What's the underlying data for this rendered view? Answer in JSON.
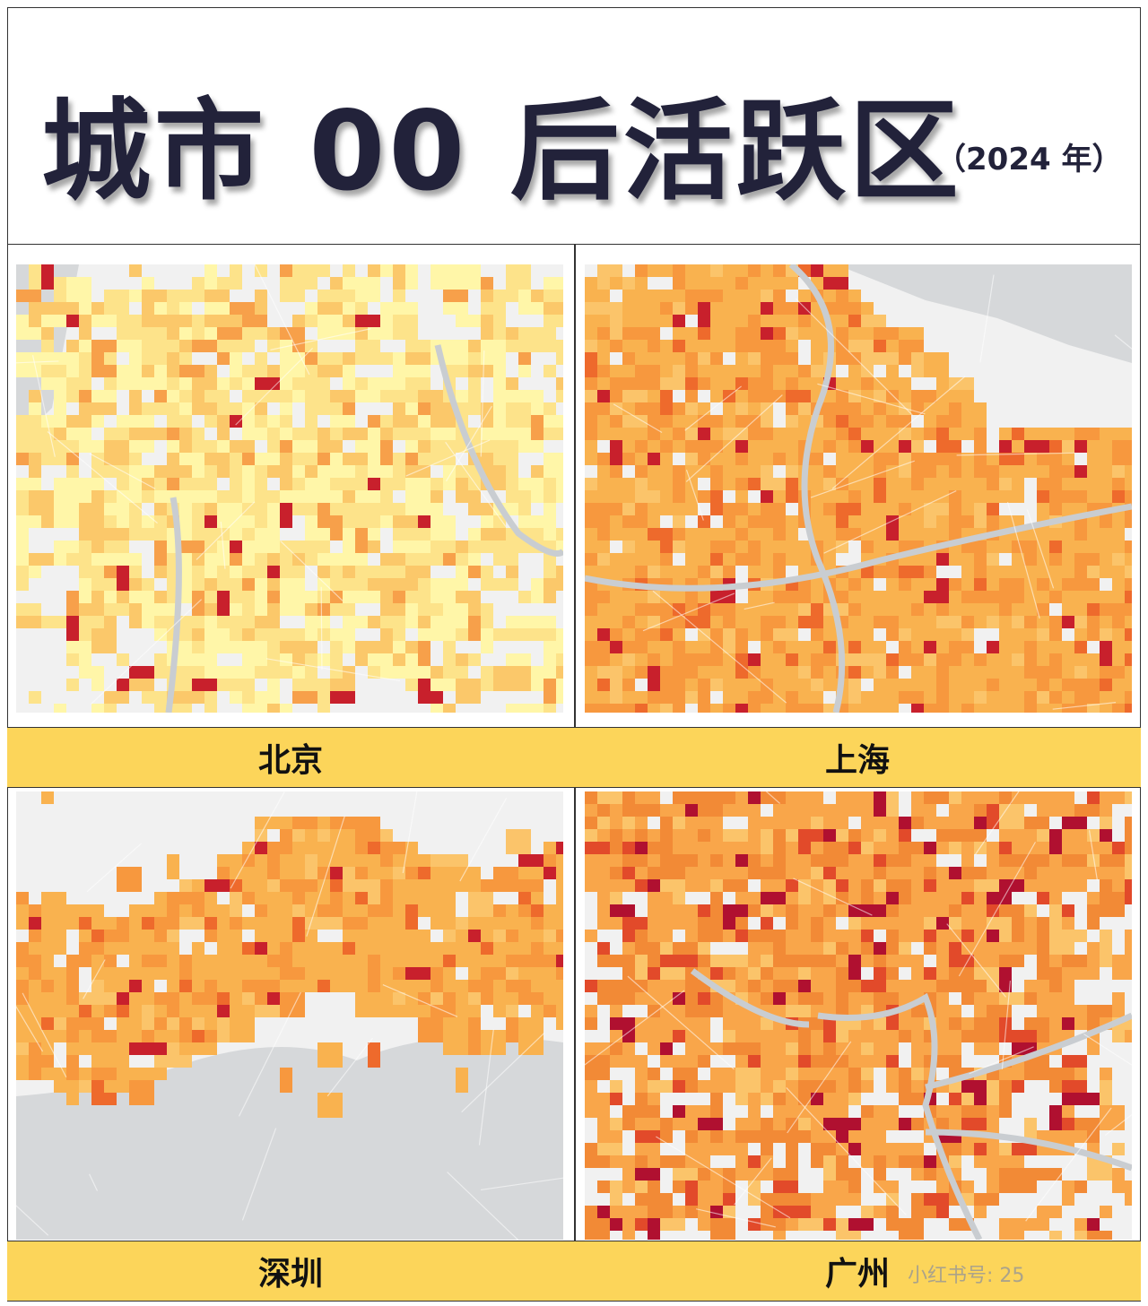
{
  "header": {
    "title": "城市 00 后活跃区",
    "subtitle": "（2024 年）"
  },
  "panels": [
    {
      "label": "北京"
    },
    {
      "label": "上海"
    },
    {
      "label": "深圳"
    },
    {
      "label": "广州"
    }
  ],
  "watermark": "小红书号: 25"
}
